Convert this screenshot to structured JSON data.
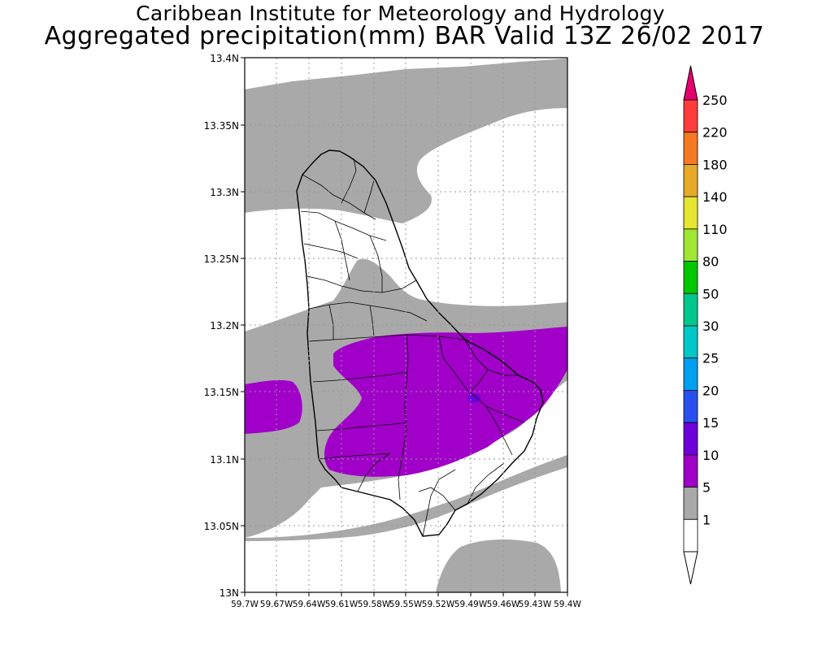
{
  "header": {
    "line1": "Caribbean Institute for Meteorology and Hydrology",
    "line2": "Aggregated precipitation(mm) BAR Valid 13Z 26/02 2017"
  },
  "axes": {
    "lat_labels": [
      "13.4N",
      "13.35N",
      "13.3N",
      "13.25N",
      "13.2N",
      "13.15N",
      "13.1N",
      "13.05N",
      "13N"
    ],
    "lon_labels": [
      "59.7W",
      "59.67W",
      "59.64W",
      "59.61W",
      "59.58W",
      "59.55W",
      "59.52W",
      "59.49W",
      "59.46W",
      "59.43W",
      "59.4W"
    ]
  },
  "colorbar": {
    "labels": [
      "250",
      "220",
      "180",
      "140",
      "110",
      "80",
      "50",
      "30",
      "25",
      "20",
      "15",
      "10",
      "5",
      "1"
    ],
    "colors": [
      "#ff3c3c",
      "#f57822",
      "#e6aa28",
      "#e6e632",
      "#a0e632",
      "#00c800",
      "#00c88c",
      "#00c8c8",
      "#00a0f0",
      "#2850f0",
      "#6e00dc",
      "#a000c8",
      "#a9a9a9",
      "#ffffff"
    ],
    "top_arrow_color": "#e6006e",
    "bottom_arrow_color": "#ffffff"
  },
  "fills": {
    "light": "#a9a9a9",
    "moderate": "#a000c8",
    "heavy_spot": "#6e00dc"
  }
}
